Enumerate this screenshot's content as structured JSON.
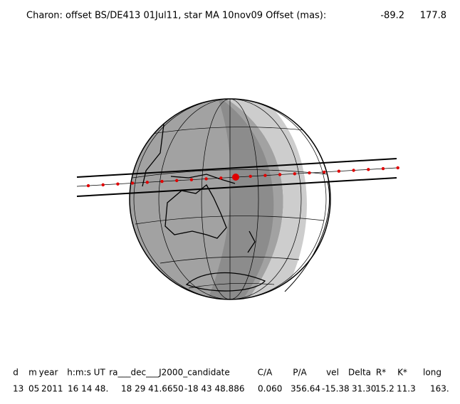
{
  "header": {
    "title": "Charon: offset BS/DE413 01Jul11, star MA 10nov09  Offset (mas):",
    "offset_1": "-89.2",
    "offset_2": "177.8"
  },
  "table": {
    "columns": [
      "d",
      "m",
      "year",
      "h:m:s UT",
      "ra___dec___J2000_candidate",
      "C/A",
      "P/A",
      "vel",
      "Delta",
      "R*",
      "K*",
      "long"
    ],
    "row": [
      "13",
      "05",
      "2011",
      "16 14 48.",
      "18 29 41.6650",
      "-18 43  48.886",
      "0.060",
      "356.64",
      "-15.38",
      "31.30",
      "15.2",
      "11.3",
      "163."
    ]
  }
}
